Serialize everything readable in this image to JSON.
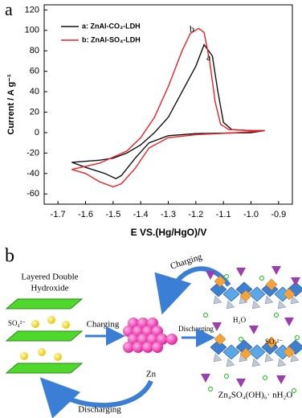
{
  "chart_data": {
    "type": "line",
    "panel_label": "a",
    "xlabel": "E VS.(Hg/HgO)/V",
    "ylabel": "Current / A g⁻¹",
    "xlim": [
      -1.75,
      -0.85
    ],
    "ylim": [
      -70,
      125
    ],
    "xticks": [
      -1.7,
      -1.6,
      -1.5,
      -1.4,
      -1.3,
      -1.2,
      -1.1,
      {
        "value": -1,
        "label": "-1.0"
      },
      -0.9
    ],
    "yticks": [
      120,
      100,
      80,
      60,
      40,
      20,
      0,
      -20,
      -40,
      -60
    ],
    "legend": "upper left",
    "annotations": [
      "b",
      "a"
    ],
    "series": [
      {
        "name": "a: ZnAl-CO₃-LDH",
        "color": "#111111",
        "x": [
          -1.65,
          -1.55,
          -1.5,
          -1.45,
          -1.4,
          -1.35,
          -1.3,
          -1.25,
          -1.2,
          -1.17,
          -1.14,
          -1.12,
          -1.1,
          -1.07,
          -1.0,
          -0.95,
          -1.0,
          -1.2,
          -1.3,
          -1.37,
          -1.42,
          -1.47,
          -1.49,
          -1.53,
          -1.6,
          -1.65
        ],
        "values": [
          -29,
          -27,
          -25,
          -20,
          -12,
          0,
          15,
          40,
          65,
          86,
          75,
          40,
          10,
          3,
          2,
          2,
          0,
          -1,
          -3,
          -10,
          -25,
          -42,
          -45,
          -40,
          -34,
          -29
        ]
      },
      {
        "name": "b: ZnAl-SO₄-LDH",
        "color": "#e8202a",
        "x": [
          -1.65,
          -1.55,
          -1.45,
          -1.4,
          -1.35,
          -1.3,
          -1.25,
          -1.22,
          -1.19,
          -1.17,
          -1.15,
          -1.13,
          -1.11,
          -1.08,
          -1.0,
          -0.95,
          -1.05,
          -1.2,
          -1.3,
          -1.37,
          -1.42,
          -1.47,
          -1.5,
          -1.55,
          -1.6,
          -1.65
        ],
        "values": [
          -36,
          -30,
          -18,
          -5,
          15,
          45,
          80,
          97,
          102,
          98,
          70,
          30,
          8,
          3,
          2,
          2,
          0,
          -2,
          -5,
          -15,
          -35,
          -50,
          -53,
          -48,
          -40,
          -36
        ]
      }
    ]
  },
  "diagram": {
    "panel_label": "b",
    "ldh_label": [
      "Layered Double",
      "Hydroxide"
    ],
    "sulfate_left": "SO₄²⁻",
    "charging_arrow": "Charging",
    "discharging_arrow": "Discharging",
    "zn_label": "Zn",
    "charging_curve": "Charging",
    "discharging_curve": "Discharging",
    "water_label": "H₂O",
    "sulfate_right": "SO₄²⁻",
    "product_label": "Zn₄SO₄(OH)₆· nH₂O"
  }
}
